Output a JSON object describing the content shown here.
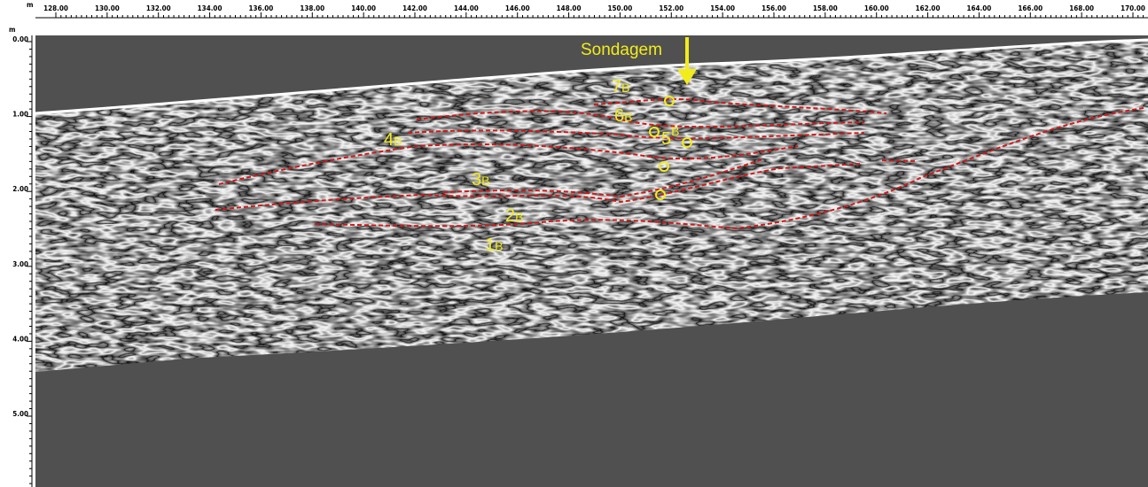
{
  "axes": {
    "x_unit": "m",
    "y_unit": "m",
    "x_ticks": [
      "128.00",
      "130.00",
      "132.00",
      "134.00",
      "136.00",
      "138.00",
      "140.00",
      "142.00",
      "144.00",
      "146.00",
      "148.00",
      "150.00",
      "152.00",
      "154.00",
      "156.00",
      "158.00",
      "160.00",
      "162.00",
      "164.00",
      "166.00",
      "168.00",
      "170.00"
    ],
    "y_ticks": [
      "0.00",
      "1.00",
      "2.00",
      "3.00",
      "4.00",
      "5.00"
    ]
  },
  "annotations": {
    "probe": "Sondagem",
    "horizons": [
      {
        "num": "1",
        "sub": "B"
      },
      {
        "num": "2",
        "sub": "B"
      },
      {
        "num": "3",
        "sub": "B"
      },
      {
        "num": "4",
        "sub": "B"
      },
      {
        "num": "5",
        "sub": "B"
      },
      {
        "num": "6",
        "sub": "B"
      },
      {
        "num": "7",
        "sub": "B"
      }
    ]
  }
}
